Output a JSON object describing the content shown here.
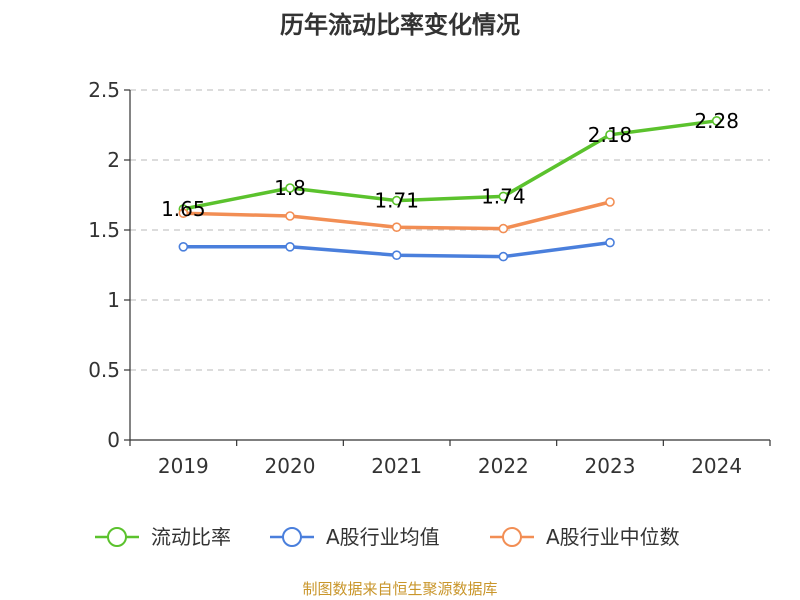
{
  "source": {
    "text": "制图数据来自恒生聚源数据库",
    "color": "#c9962b"
  },
  "chart_data": {
    "type": "line",
    "title": "历年流动比率变化情况",
    "xlabel": "",
    "ylabel": "",
    "categories": [
      "2019",
      "2020",
      "2021",
      "2022",
      "2023",
      "2024"
    ],
    "ylim": [
      0,
      2.5
    ],
    "yticks": [
      0,
      0.5,
      1,
      1.5,
      2,
      2.5
    ],
    "ytick_labels": [
      "0",
      "0.5",
      "1",
      "1.5",
      "2",
      "2.5"
    ],
    "grid": true,
    "legend_position": "bottom",
    "series": [
      {
        "name": "流动比率",
        "color": "#5bc22d",
        "values": [
          1.65,
          1.8,
          1.71,
          1.74,
          2.18,
          2.28
        ],
        "labels": [
          "1.65",
          "1.8",
          "1.71",
          "1.74",
          "2.18",
          "2.28"
        ]
      },
      {
        "name": "A股行业均值",
        "color": "#4a7fdc",
        "values": [
          1.38,
          1.38,
          1.32,
          1.31,
          1.41,
          null
        ]
      },
      {
        "name": "A股行业中位数",
        "color": "#f28e54",
        "values": [
          1.62,
          1.6,
          1.52,
          1.51,
          1.7,
          null
        ]
      }
    ]
  }
}
